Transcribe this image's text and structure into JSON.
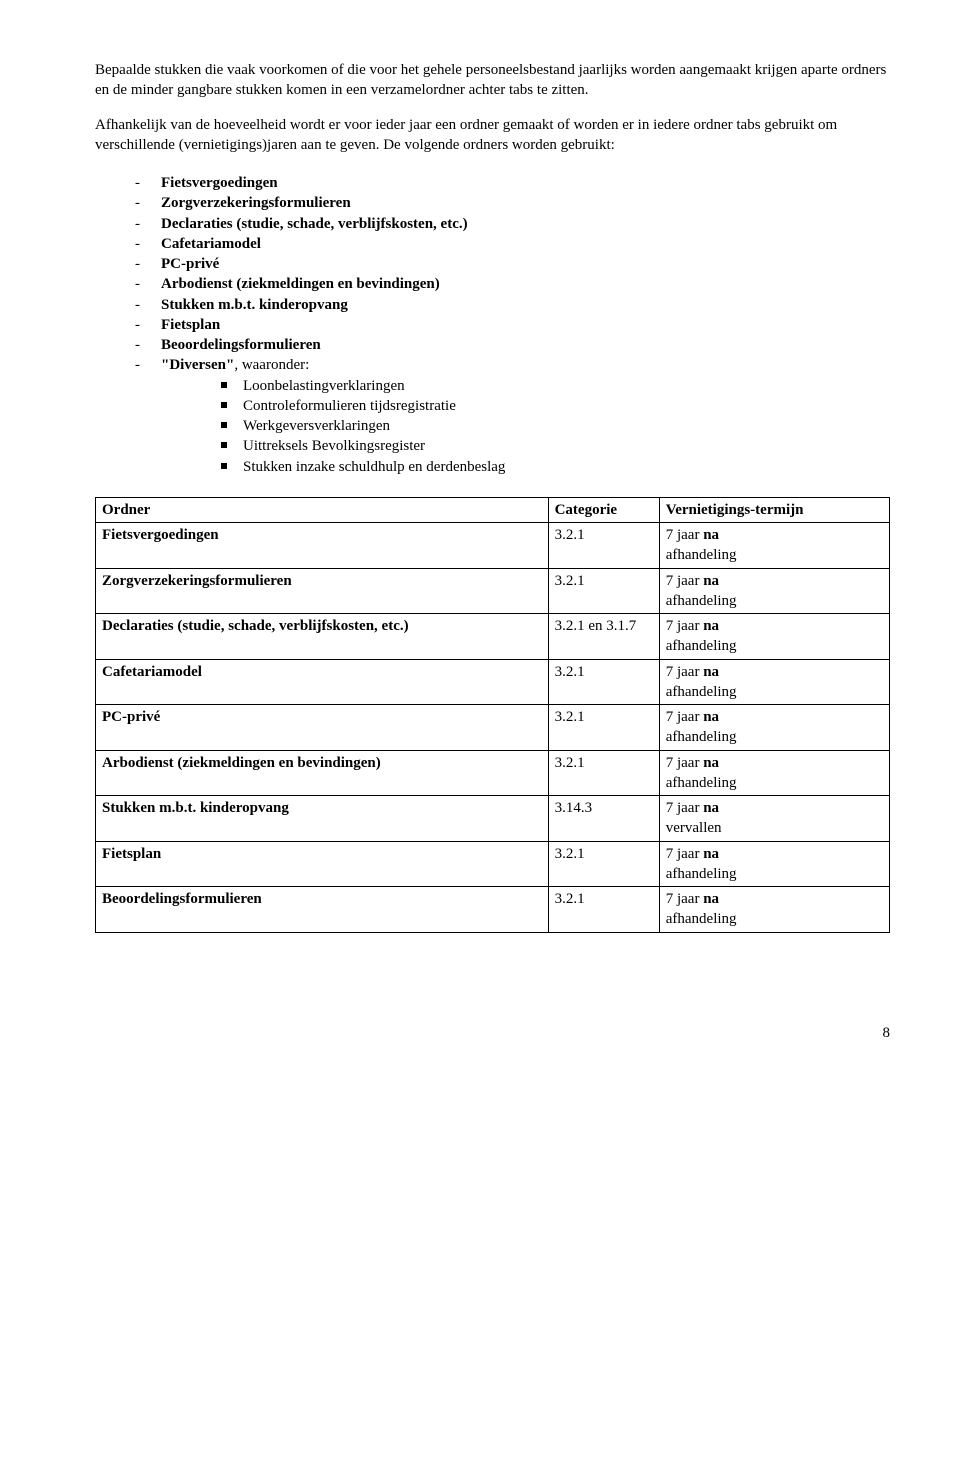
{
  "paragraph1": "Bepaalde stukken die vaak voorkomen of die voor het gehele personeelsbestand jaarlijks worden aangemaakt krijgen aparte ordners en de minder gangbare stukken komen in een verzamelordner achter tabs te zitten.",
  "paragraph2": "Afhankelijk van de hoeveelheid wordt er voor ieder jaar een ordner gemaakt of worden er in iedere ordner tabs gebruikt om verschillende (vernietigings)jaren aan te geven. De volgende ordners worden gebruikt:",
  "list": {
    "i0": "Fietsvergoedingen",
    "i1": "Zorgverzekeringsformulieren",
    "i2": "Declaraties (studie, schade, verblijfskosten, etc.)",
    "i3": "Cafetariamodel",
    "i4": "PC-privé",
    "i5": "Arbodienst (ziekmeldingen en bevindingen)",
    "i6": "Stukken m.b.t. kinderopvang",
    "i7": "Fietsplan",
    "i8": "Beoordelingsformulieren",
    "i9_prefix": "\"Diversen\"",
    "i9_suffix": ", waaronder:",
    "sub": {
      "s0": "Loonbelastingverklaringen",
      "s1": "Controleformulieren tijdsregistratie",
      "s2": "Werkgeversverklaringen",
      "s3": "Uittreksels Bevolkingsregister",
      "s4": "Stukken inzake schuldhulp en derdenbeslag"
    }
  },
  "table": {
    "headers": {
      "h0": "Ordner",
      "h1": "Categorie",
      "h2": "Vernietigings-termijn"
    },
    "rows": {
      "r0": {
        "c0": "Fietsvergoedingen",
        "c1": "3.2.1",
        "c2a": "7 jaar ",
        "c2b": "na",
        "c2c": "afhandeling"
      },
      "r1": {
        "c0": "Zorgverzekeringsformulieren",
        "c1": "3.2.1",
        "c2a": "7 jaar ",
        "c2b": "na",
        "c2c": "afhandeling"
      },
      "r2": {
        "c0": "Declaraties (studie, schade, verblijfskosten, etc.)",
        "c1": "3.2.1 en 3.1.7",
        "c2a": "7 jaar ",
        "c2b": "na",
        "c2c": "afhandeling"
      },
      "r3": {
        "c0": "Cafetariamodel",
        "c1": "3.2.1",
        "c2a": "7 jaar ",
        "c2b": "na",
        "c2c": "afhandeling"
      },
      "r4": {
        "c0": "PC-privé",
        "c1": "3.2.1",
        "c2a": "7 jaar ",
        "c2b": "na",
        "c2c": "afhandeling"
      },
      "r5": {
        "c0": "Arbodienst (ziekmeldingen en bevindingen)",
        "c1": "3.2.1",
        "c2a": "7 jaar ",
        "c2b": "na",
        "c2c": "afhandeling"
      },
      "r6": {
        "c0": "Stukken m.b.t. kinderopvang",
        "c1": "3.14.3",
        "c2a": "7 jaar ",
        "c2b": "na",
        "c2c": "vervallen"
      },
      "r7": {
        "c0": "Fietsplan",
        "c1": "3.2.1",
        "c2a": "7 jaar ",
        "c2b": "na",
        "c2c": "afhandeling"
      },
      "r8": {
        "c0": "Beoordelingsformulieren",
        "c1": "3.2.1",
        "c2a": "7 jaar ",
        "c2b": "na",
        "c2c": "afhandeling"
      }
    }
  },
  "pagenum": "8"
}
